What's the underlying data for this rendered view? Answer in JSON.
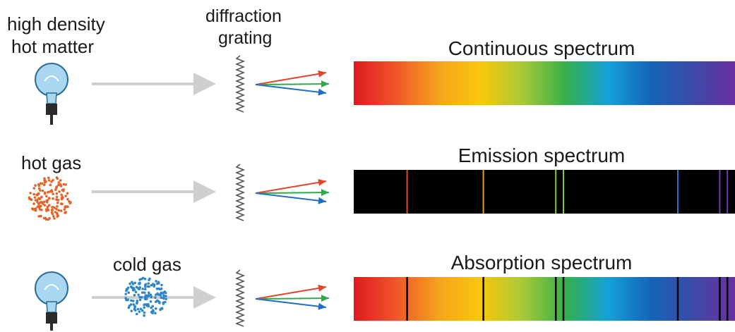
{
  "labels": {
    "source_line1": "high density",
    "source_line2": "hot matter",
    "grating_line1": "diffraction",
    "grating_line2": "grating",
    "hot_gas": "hot gas",
    "cold_gas": "cold gas"
  },
  "spectra": [
    {
      "title": "Continuous spectrum",
      "kind": "continuous",
      "lines": []
    },
    {
      "title": "Emission spectrum",
      "kind": "emission",
      "lines": [
        {
          "pos": 0.14,
          "color": "#d9531e"
        },
        {
          "pos": 0.34,
          "color": "#e89a2a"
        },
        {
          "pos": 0.53,
          "color": "#8cc63f"
        },
        {
          "pos": 0.55,
          "color": "#8cc63f"
        },
        {
          "pos": 0.85,
          "color": "#1f78c8"
        },
        {
          "pos": 0.96,
          "color": "#6a3fb3"
        },
        {
          "pos": 0.98,
          "color": "#6a3fb3"
        }
      ]
    },
    {
      "title": "Absorption spectrum",
      "kind": "absorption",
      "lines": [
        {
          "pos": 0.14,
          "color": "#000000"
        },
        {
          "pos": 0.34,
          "color": "#000000"
        },
        {
          "pos": 0.53,
          "color": "#000000"
        },
        {
          "pos": 0.55,
          "color": "#000000"
        },
        {
          "pos": 0.85,
          "color": "#000000"
        },
        {
          "pos": 0.96,
          "color": "#000000"
        },
        {
          "pos": 0.98,
          "color": "#000000"
        }
      ]
    }
  ],
  "colors": {
    "arrow_gray": "#cfcfcf",
    "ray_red": "#e2452a",
    "ray_green": "#2faa4a",
    "ray_blue": "#1f6fbf",
    "hot_gas_dots": "#e0662a",
    "cold_gas_dots": "#2f86c8",
    "bulb_glass": "#a9d7f2",
    "bulb_base": "#2b2b2b",
    "spectrum_stops": [
      "#e0181f",
      "#f0562a",
      "#f6a21c",
      "#f9c80c",
      "#a6c936",
      "#34b04a",
      "#15a0d9",
      "#1565b8",
      "#3b4aa8",
      "#6a2fa0"
    ]
  },
  "icons": {
    "bulb": "light-bulb-icon",
    "grating": "diffraction-grating-icon",
    "gas": "gas-cloud-icon"
  }
}
